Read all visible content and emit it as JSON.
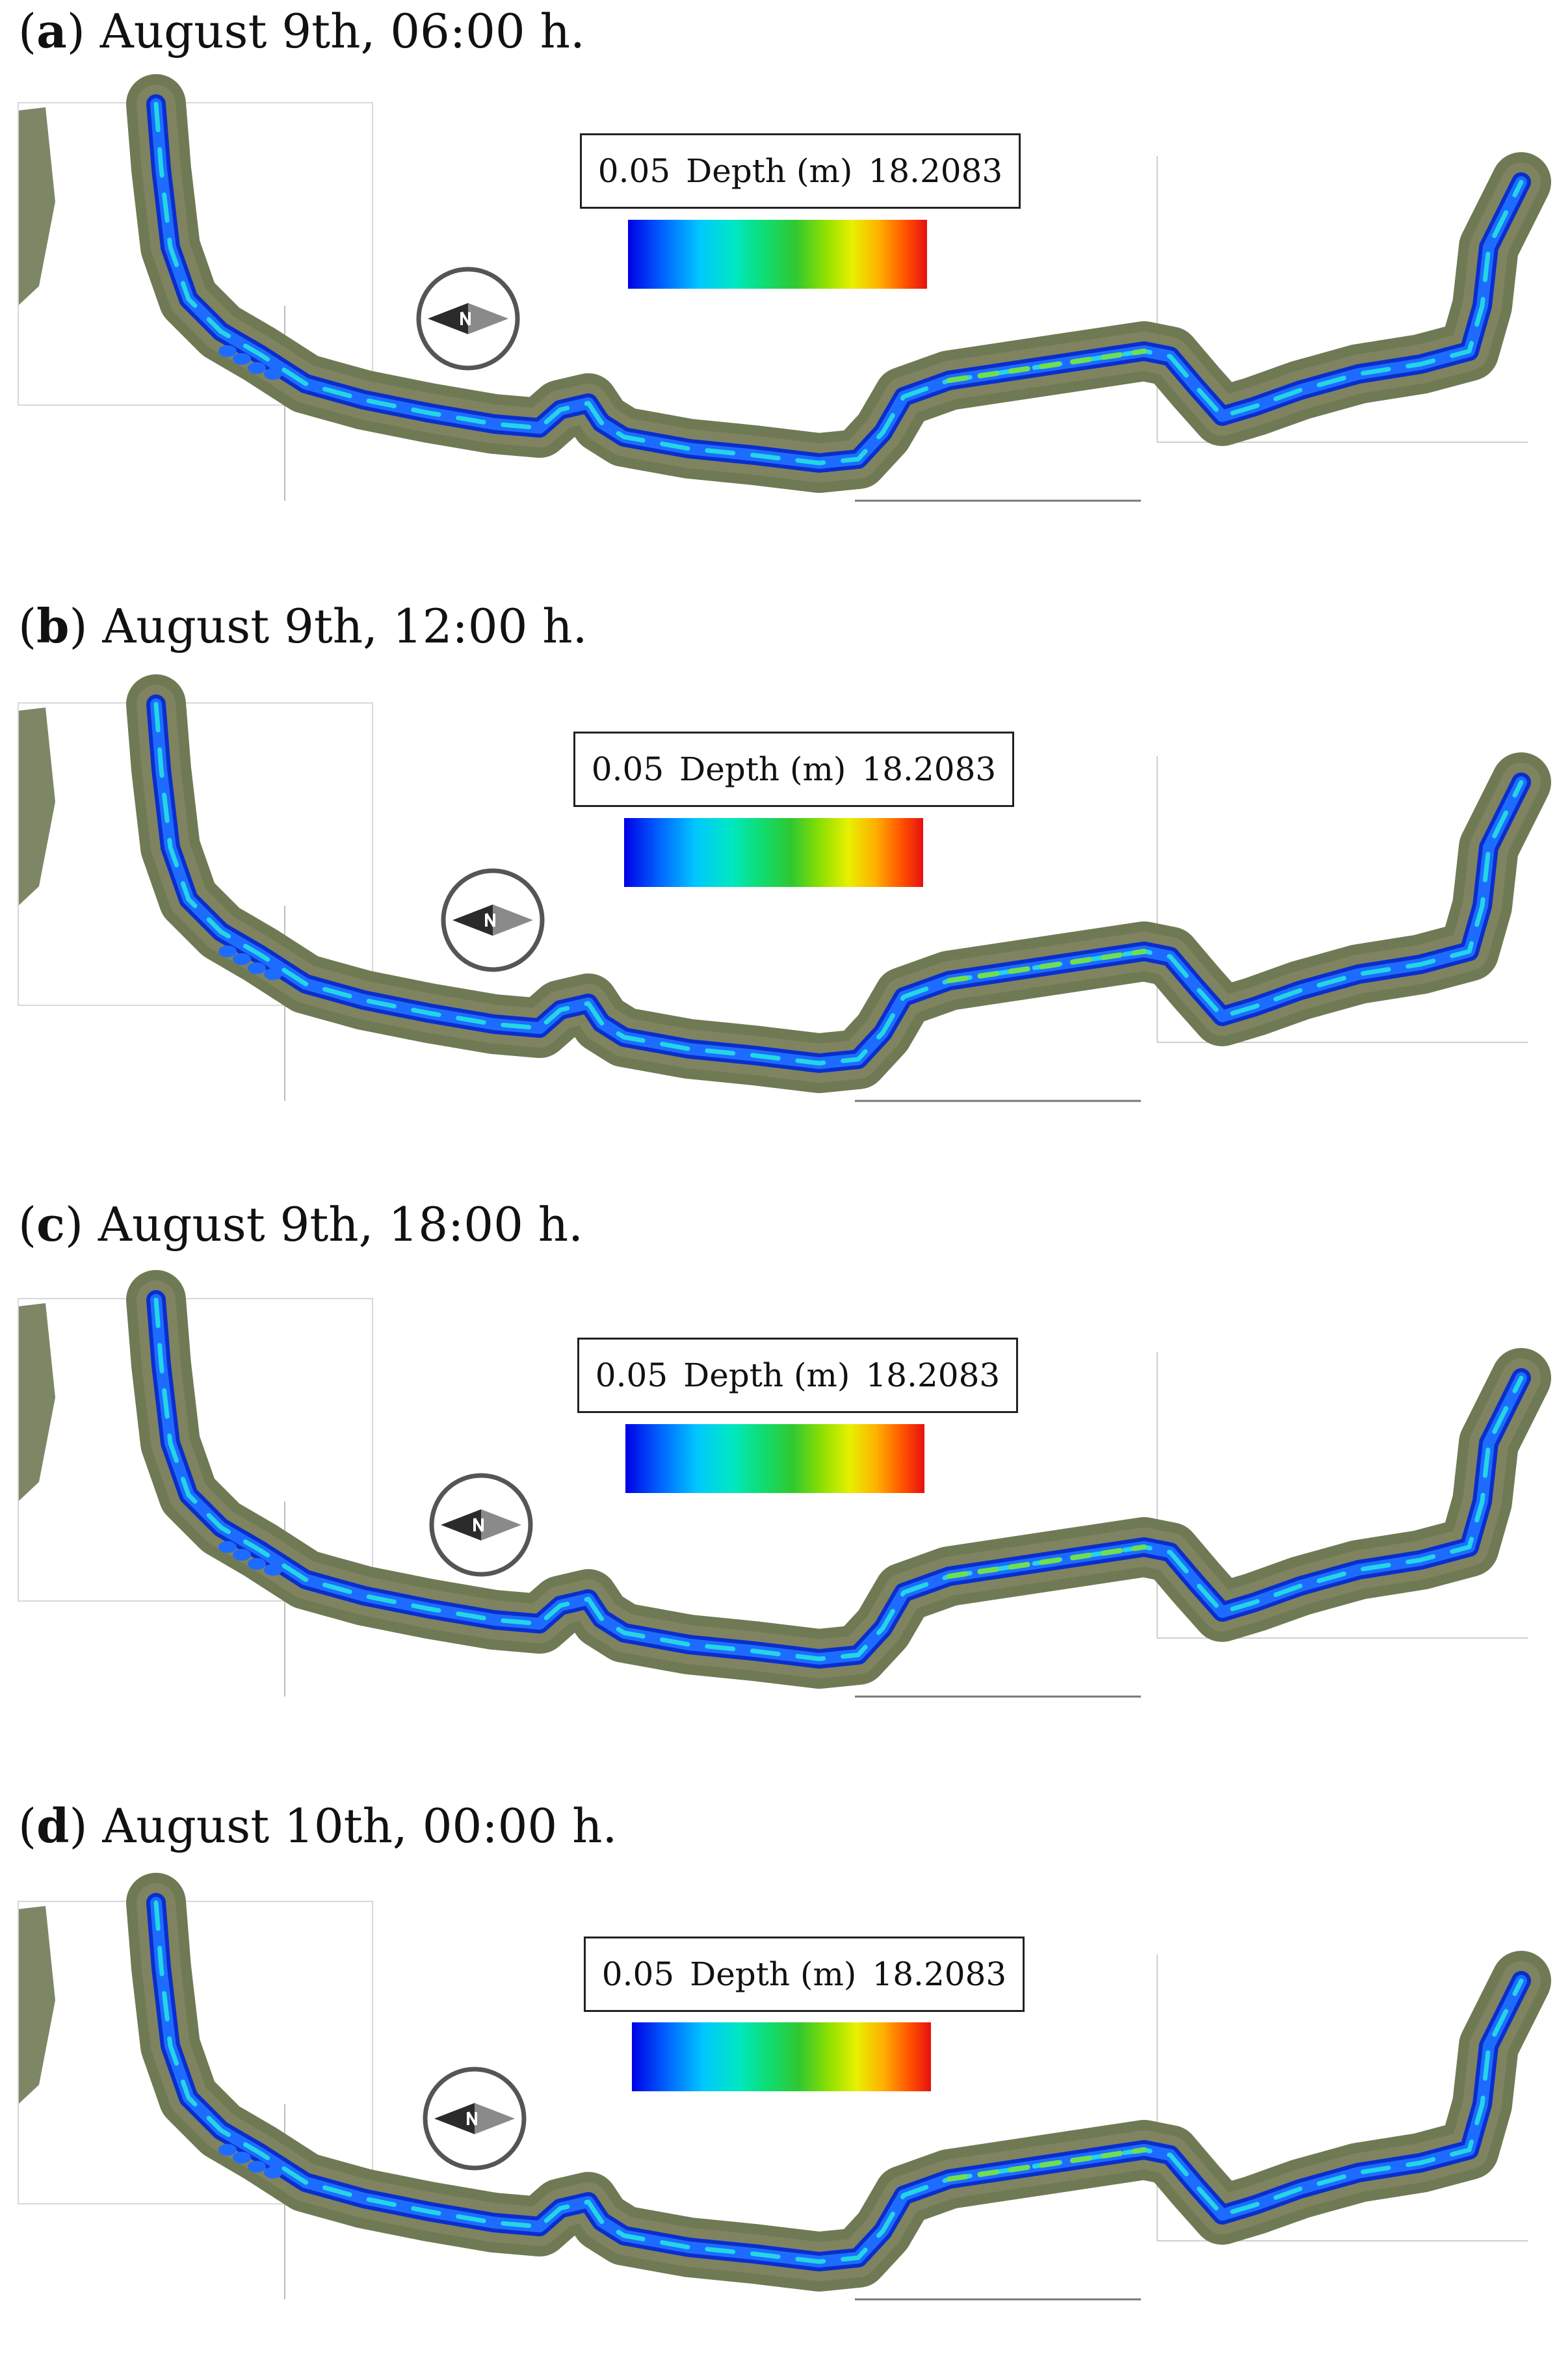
{
  "panels": [
    {
      "letter": "a",
      "caption_rest": ") August 9th, 06:00 h.",
      "legend_min": "0.05",
      "legend_label": "Depth (m)",
      "legend_max": "18.2083"
    },
    {
      "letter": "b",
      "caption_rest": ") August 9th, 12:00 h.",
      "legend_min": "0.05",
      "legend_label": "Depth (m)",
      "legend_max": "18.2083"
    },
    {
      "letter": "c",
      "caption_rest": ") August 9th, 18:00 h.",
      "legend_min": "0.05",
      "legend_label": "Depth (m)",
      "legend_max": "18.2083"
    },
    {
      "letter": "d",
      "caption_rest": ") August 10th, 00:00 h.",
      "legend_min": "0.05",
      "legend_label": "Depth (m)",
      "legend_max": "18.2083"
    }
  ],
  "icons": {
    "compass": "north-arrow-compass-icon"
  },
  "colors": {
    "water_deep": "#0a2ecc",
    "water_mid": "#1e6cff",
    "water_shallow": "#22d6e6",
    "water_green": "#6ee050",
    "terrain": "#6f7a55"
  }
}
